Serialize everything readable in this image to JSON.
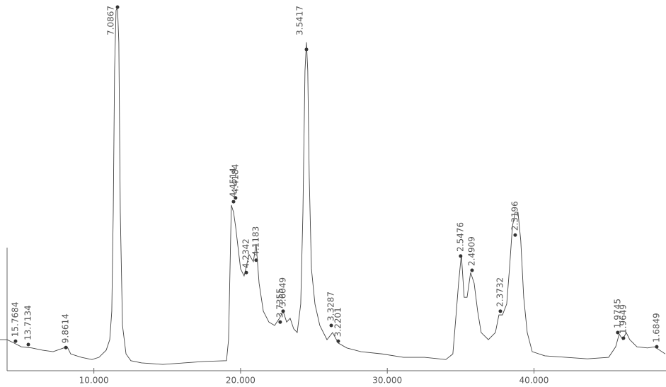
{
  "chart_data": {
    "type": "line",
    "x": [
      3.6,
      4.08,
      4.56,
      5.05,
      5.77,
      6.49,
      7.22,
      7.94,
      8.18,
      8.42,
      9.15,
      9.87,
      10.35,
      10.84,
      11.08,
      11.22,
      11.32,
      11.41,
      11.51,
      11.61,
      11.7,
      11.8,
      11.95,
      12.19,
      12.52,
      13.25,
      14.7,
      16.14,
      17.59,
      19.04,
      19.18,
      19.28,
      19.37,
      19.52,
      19.66,
      20.0,
      20.24,
      20.58,
      20.87,
      21.06,
      21.26,
      21.55,
      21.93,
      22.32,
      22.65,
      22.9,
      23.14,
      23.38,
      23.62,
      23.86,
      24.1,
      24.25,
      24.39,
      24.49,
      24.58,
      24.68,
      24.83,
      25.07,
      25.4,
      25.89,
      26.27,
      26.66,
      27.24,
      28.2,
      29.65,
      31.1,
      32.54,
      33.99,
      34.47,
      34.71,
      34.86,
      35.05,
      35.24,
      35.44,
      35.68,
      35.92,
      36.16,
      36.4,
      36.89,
      37.37,
      37.61,
      37.85,
      38.14,
      38.33,
      38.53,
      38.72,
      38.91,
      39.1,
      39.3,
      39.54,
      39.88,
      40.74,
      42.19,
      43.64,
      45.09,
      45.57,
      45.81,
      46.05,
      46.29,
      46.53,
      47.02,
      47.74,
      48.22,
      48.95
    ],
    "values": [
      11.3,
      11.3,
      10.4,
      9.4,
      9.1,
      8.5,
      8.1,
      9.1,
      9.4,
      7.5,
      6.6,
      6.0,
      6.6,
      8.5,
      11.3,
      18.9,
      45.3,
      83.0,
      99.1,
      100,
      90.6,
      45.3,
      15.1,
      7.5,
      5.7,
      5.1,
      4.7,
      5.1,
      5.5,
      5.7,
      11.3,
      30.2,
      47.2,
      45.3,
      41.5,
      30.2,
      28.3,
      34.0,
      32.1,
      36.8,
      26.4,
      18.9,
      16.0,
      15.1,
      17.0,
      18.9,
      16.0,
      17.0,
      14.2,
      13.2,
      20.8,
      45.3,
      83.0,
      90.6,
      83.0,
      54.7,
      30.2,
      20.8,
      15.1,
      11.3,
      13.2,
      10.4,
      9.1,
      8.1,
      7.5,
      6.6,
      6.6,
      6.0,
      7.5,
      18.9,
      26.4,
      34.0,
      22.6,
      22.6,
      29.2,
      26.4,
      18.9,
      13.2,
      11.3,
      13.2,
      17.9,
      17.9,
      20.8,
      30.2,
      41.5,
      45.3,
      45.3,
      37.7,
      22.6,
      13.2,
      8.1,
      7.0,
      6.6,
      6.2,
      6.6,
      9.4,
      12.8,
      11.3,
      13.2,
      11.3,
      9.4,
      9.1,
      9.4,
      7.5
    ],
    "color": "#444444",
    "xlim": [
      3.6,
      49.0
    ],
    "ylim": [
      0,
      100
    ],
    "xticks": [
      {
        "value": 10,
        "label": "10.000"
      },
      {
        "value": 20,
        "label": "20.000"
      },
      {
        "value": 30,
        "label": "30.000"
      },
      {
        "value": 40,
        "label": "40.000"
      }
    ],
    "annotations": [
      {
        "label": "15.7684",
        "x": 4.66,
        "y": 10.9
      },
      {
        "label": "13.7134",
        "x": 5.53,
        "y": 10.0
      },
      {
        "label": "9.8614",
        "x": 8.09,
        "y": 9.2
      },
      {
        "label": "7.0867",
        "x": 11.61,
        "y": 100
      },
      {
        "label": "4.4514",
        "x": 19.52,
        "y": 48.1
      },
      {
        "label": "4.4184",
        "x": 19.66,
        "y": 49.1
      },
      {
        "label": "4.2342",
        "x": 20.39,
        "y": 29.2
      },
      {
        "label": "4.1183",
        "x": 21.06,
        "y": 32.5
      },
      {
        "label": "3.7355",
        "x": 22.7,
        "y": 16.0
      },
      {
        "label": "3.6049",
        "x": 22.9,
        "y": 18.9
      },
      {
        "label": "3.5417",
        "x": 24.49,
        "y": 88.7
      },
      {
        "label": "3.3287",
        "x": 26.18,
        "y": 15.1
      },
      {
        "label": "3.2201",
        "x": 26.66,
        "y": 10.9
      },
      {
        "label": "2.5476",
        "x": 35.0,
        "y": 33.6
      },
      {
        "label": "2.4909",
        "x": 35.78,
        "y": 29.8
      },
      {
        "label": "2.3732",
        "x": 37.71,
        "y": 18.9
      },
      {
        "label": "2.3196",
        "x": 38.72,
        "y": 39.2
      },
      {
        "label": "1.9745",
        "x": 45.71,
        "y": 13.2
      },
      {
        "label": "1.9649",
        "x": 46.1,
        "y": 11.7
      },
      {
        "label": "1.6849",
        "x": 48.37,
        "y": 9.4
      }
    ]
  }
}
